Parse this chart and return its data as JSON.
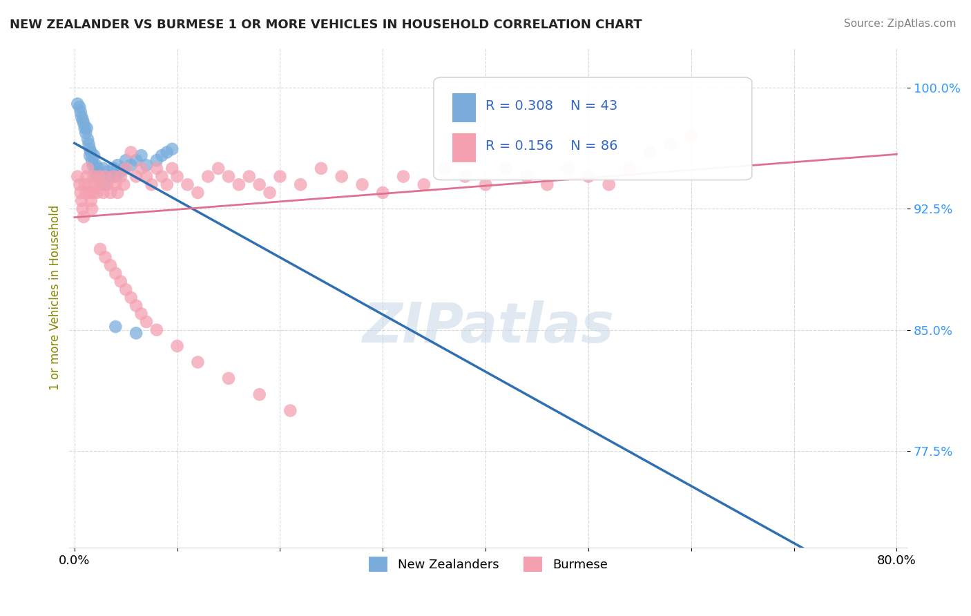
{
  "title": "NEW ZEALANDER VS BURMESE 1 OR MORE VEHICLES IN HOUSEHOLD CORRELATION CHART",
  "source_text": "Source: ZipAtlas.com",
  "ylabel": "1 or more Vehicles in Household",
  "legend_labels": [
    "New Zealanders",
    "Burmese"
  ],
  "nz_R": 0.308,
  "nz_N": 43,
  "bu_R": 0.156,
  "bu_N": 86,
  "xlim": [
    -0.005,
    0.81
  ],
  "ylim": [
    0.715,
    1.025
  ],
  "yticks": [
    0.775,
    0.85,
    0.925,
    1.0
  ],
  "ytick_labels": [
    "77.5%",
    "85.0%",
    "92.5%",
    "100.0%"
  ],
  "xticks": [
    0.0,
    0.1,
    0.2,
    0.3,
    0.4,
    0.5,
    0.6,
    0.7,
    0.8
  ],
  "xtick_labels": [
    "0.0%",
    "",
    "",
    "",
    "",
    "",
    "",
    "",
    "80.0%"
  ],
  "nz_color": "#7aaddc",
  "bu_color": "#f4a0b0",
  "nz_line_color": "#3070b0",
  "bu_line_color": "#e07090",
  "watermark": "ZIPatlas",
  "nz_x": [
    0.003,
    0.005,
    0.006,
    0.007,
    0.008,
    0.009,
    0.01,
    0.011,
    0.012,
    0.013,
    0.014,
    0.015,
    0.015,
    0.016,
    0.017,
    0.018,
    0.019,
    0.02,
    0.021,
    0.022,
    0.023,
    0.025,
    0.026,
    0.028,
    0.03,
    0.032,
    0.035,
    0.038,
    0.04,
    0.042,
    0.045,
    0.048,
    0.05,
    0.055,
    0.06,
    0.065,
    0.07,
    0.08,
    0.085,
    0.09,
    0.095,
    0.06,
    0.04
  ],
  "nz_y": [
    0.99,
    0.988,
    0.985,
    0.982,
    0.98,
    0.978,
    0.975,
    0.972,
    0.975,
    0.968,
    0.965,
    0.962,
    0.958,
    0.96,
    0.955,
    0.952,
    0.958,
    0.948,
    0.952,
    0.945,
    0.95,
    0.942,
    0.945,
    0.95,
    0.94,
    0.948,
    0.945,
    0.95,
    0.945,
    0.952,
    0.948,
    0.95,
    0.955,
    0.952,
    0.955,
    0.958,
    0.952,
    0.955,
    0.958,
    0.96,
    0.962,
    0.848,
    0.852
  ],
  "bu_x": [
    0.003,
    0.005,
    0.006,
    0.007,
    0.008,
    0.009,
    0.01,
    0.011,
    0.012,
    0.013,
    0.014,
    0.015,
    0.016,
    0.017,
    0.018,
    0.019,
    0.02,
    0.022,
    0.024,
    0.026,
    0.028,
    0.03,
    0.032,
    0.035,
    0.038,
    0.04,
    0.042,
    0.045,
    0.048,
    0.05,
    0.055,
    0.06,
    0.065,
    0.07,
    0.075,
    0.08,
    0.085,
    0.09,
    0.095,
    0.1,
    0.11,
    0.12,
    0.13,
    0.14,
    0.15,
    0.16,
    0.17,
    0.18,
    0.19,
    0.2,
    0.22,
    0.24,
    0.26,
    0.28,
    0.3,
    0.32,
    0.34,
    0.36,
    0.38,
    0.4,
    0.42,
    0.44,
    0.46,
    0.48,
    0.5,
    0.52,
    0.54,
    0.56,
    0.58,
    0.6,
    0.025,
    0.03,
    0.035,
    0.04,
    0.045,
    0.05,
    0.055,
    0.06,
    0.065,
    0.07,
    0.08,
    0.1,
    0.12,
    0.15,
    0.18,
    0.21
  ],
  "bu_y": [
    0.945,
    0.94,
    0.935,
    0.93,
    0.925,
    0.92,
    0.94,
    0.935,
    0.945,
    0.95,
    0.94,
    0.935,
    0.93,
    0.925,
    0.935,
    0.945,
    0.94,
    0.935,
    0.945,
    0.94,
    0.935,
    0.945,
    0.94,
    0.935,
    0.945,
    0.94,
    0.935,
    0.945,
    0.94,
    0.95,
    0.96,
    0.945,
    0.95,
    0.945,
    0.94,
    0.95,
    0.945,
    0.94,
    0.95,
    0.945,
    0.94,
    0.935,
    0.945,
    0.95,
    0.945,
    0.94,
    0.945,
    0.94,
    0.935,
    0.945,
    0.94,
    0.95,
    0.945,
    0.94,
    0.935,
    0.945,
    0.94,
    0.95,
    0.945,
    0.94,
    0.95,
    0.945,
    0.94,
    0.95,
    0.945,
    0.94,
    0.95,
    0.96,
    0.965,
    0.97,
    0.9,
    0.895,
    0.89,
    0.885,
    0.88,
    0.875,
    0.87,
    0.865,
    0.86,
    0.855,
    0.85,
    0.84,
    0.83,
    0.82,
    0.81,
    0.8
  ]
}
